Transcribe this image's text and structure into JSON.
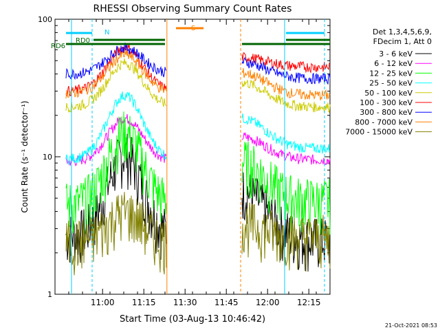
{
  "chart_data": {
    "type": "line",
    "title": "RHESSI Observing Summary Count Rates",
    "xlabel": "Start Time (03-Aug-13 10:46:42)",
    "ylabel": "Count Rate (s⁻¹ detector⁻¹)",
    "yscale": "log",
    "xlim_minutes": [
      -4,
      39.5
    ],
    "ylim": [
      1,
      100
    ],
    "xticks": [
      {
        "value": 13.3,
        "label": "11:00"
      },
      {
        "value": 28.3,
        "label": "11:15"
      },
      {
        "value": 43.3,
        "label": "11:30"
      },
      {
        "value": 58.3,
        "label": "11:45"
      },
      {
        "value": 73.3,
        "label": "12:00"
      },
      {
        "value": 88.3,
        "label": "12:15"
      }
    ],
    "yticks": [
      {
        "value": 1,
        "label": "1"
      },
      {
        "value": 10,
        "label": "10"
      },
      {
        "value": 100,
        "label": "100"
      }
    ],
    "legend_header": [
      "Det 1,3,4,5,6,9,",
      "FDecim 1, Att 0"
    ],
    "series": [
      {
        "name": "3 - 6 keV",
        "color": "#000000",
        "pre": 2.7,
        "peak": 10.5,
        "post": 2.5
      },
      {
        "name": "6 - 12 keV",
        "color": "#ff00ff",
        "pre": 9.2,
        "peak": 19,
        "post": 9.5
      },
      {
        "name": "12 - 25 keV",
        "color": "#00ff00",
        "pre": 4.5,
        "peak": 15,
        "post": 4.8
      },
      {
        "name": "25 - 50 keV",
        "color": "#00ffff",
        "pre": 9.6,
        "peak": 28,
        "post": 11.5
      },
      {
        "name": "50 - 100 keV",
        "color": "#cccc00",
        "pre": 23,
        "peak": 48,
        "post": 23
      },
      {
        "name": "100 - 300 keV",
        "color": "#ff0000",
        "pre": 30,
        "peak": 62,
        "post": 45
      },
      {
        "name": "300 - 800 keV",
        "color": "#0000ff",
        "pre": 40,
        "peak": 62,
        "post": 37
      },
      {
        "name": "800 - 7000 keV",
        "color": "#ff8000",
        "pre": 29,
        "peak": 55,
        "post": 28
      },
      {
        "name": "7000 - 15000 keV",
        "color": "#808000",
        "pre": 2.4,
        "peak": 4,
        "post": 2.6
      }
    ],
    "data_gaps_minutes": [
      [
        41,
        50.5
      ]
    ],
    "annotations": [
      {
        "label": "RD0",
        "color": "#006400"
      },
      {
        "label": "RD6",
        "color": "#006400"
      },
      {
        "label": "N",
        "color": "#00ccff"
      },
      {
        "label": "S",
        "color": "#ff8000"
      }
    ],
    "footer": "21-Oct-2021 08:53"
  }
}
